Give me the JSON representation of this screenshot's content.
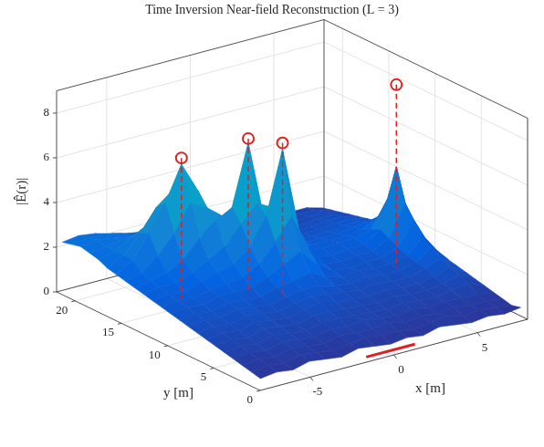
{
  "chart_data": {
    "type": "surface",
    "title": "Time Inversion Near-field Reconstruction (L = 3)",
    "x_label": "x [m]",
    "y_label": "y [m]",
    "z_label": "|Ê(r)|",
    "xlim": [
      -8,
      8
    ],
    "ylim": [
      0,
      22
    ],
    "zlim": [
      0,
      9
    ],
    "xticks": [
      -5,
      0,
      5
    ],
    "yticks": [
      0,
      5,
      10,
      15,
      20
    ],
    "zticks": [
      0,
      2,
      4,
      6,
      8
    ],
    "grid": true,
    "x": [
      -8,
      -7,
      -6,
      -5,
      -4,
      -3,
      -2,
      -1,
      0,
      1,
      2,
      3,
      4,
      5,
      6,
      7,
      8
    ],
    "y": [
      0,
      1,
      2,
      3,
      4,
      5,
      6,
      7,
      8,
      9,
      10,
      11,
      12,
      13,
      14,
      15,
      16,
      17,
      18,
      19,
      20,
      21,
      22
    ],
    "z": [
      [
        0.3,
        0.4,
        0.3,
        0.5,
        0.4,
        0.3,
        0.5,
        0.4,
        0.3,
        0.4,
        0.3,
        0.5,
        0.4,
        0.3,
        0.4,
        0.3,
        0.4
      ],
      [
        0.4,
        0.5,
        0.4,
        0.6,
        0.5,
        0.4,
        0.5,
        0.6,
        0.5,
        0.5,
        0.4,
        0.5,
        0.6,
        0.4,
        0.5,
        0.4,
        0.3
      ],
      [
        0.5,
        0.6,
        0.5,
        0.7,
        0.6,
        0.5,
        0.7,
        0.6,
        0.6,
        0.7,
        0.5,
        0.6,
        0.5,
        0.6,
        0.5,
        0.5,
        0.4
      ],
      [
        0.6,
        0.7,
        0.6,
        0.8,
        0.7,
        0.6,
        0.8,
        0.7,
        0.8,
        0.7,
        0.6,
        0.7,
        0.6,
        0.7,
        0.6,
        0.6,
        0.5
      ],
      [
        0.7,
        0.8,
        0.7,
        0.9,
        0.8,
        0.7,
        0.9,
        0.9,
        0.8,
        0.8,
        0.7,
        0.8,
        0.7,
        0.7,
        0.8,
        0.9,
        0.6
      ],
      [
        0.8,
        0.9,
        0.8,
        1.0,
        0.9,
        0.8,
        1.0,
        1.0,
        0.9,
        0.9,
        0.8,
        0.9,
        0.8,
        0.8,
        0.9,
        1.1,
        0.7
      ],
      [
        0.9,
        1.0,
        0.9,
        1.1,
        1.0,
        0.9,
        1.1,
        1.2,
        1.0,
        1.0,
        0.9,
        1.0,
        0.9,
        0.9,
        1.0,
        1.3,
        0.8
      ],
      [
        1.0,
        1.1,
        1.0,
        1.2,
        1.1,
        1.0,
        1.2,
        1.3,
        1.2,
        1.1,
        1.0,
        1.1,
        1.0,
        1.0,
        1.2,
        1.5,
        0.9
      ],
      [
        1.1,
        1.2,
        1.1,
        1.3,
        1.2,
        1.1,
        1.3,
        1.4,
        1.4,
        1.2,
        1.1,
        1.2,
        1.1,
        1.1,
        1.3,
        1.8,
        1.0
      ],
      [
        1.2,
        1.3,
        1.2,
        1.4,
        1.3,
        1.3,
        1.5,
        1.6,
        1.8,
        1.4,
        1.2,
        1.3,
        1.2,
        1.2,
        1.4,
        2.1,
        1.1
      ],
      [
        1.3,
        1.4,
        1.3,
        1.5,
        1.5,
        1.5,
        1.8,
        2.2,
        2.6,
        1.8,
        1.3,
        1.2,
        1.3,
        1.3,
        1.6,
        2.6,
        1.2
      ],
      [
        1.4,
        1.5,
        1.4,
        1.6,
        1.7,
        1.8,
        2.2,
        3.0,
        4.0,
        2.4,
        1.4,
        1.3,
        1.4,
        1.4,
        1.8,
        3.2,
        1.3
      ],
      [
        1.5,
        1.6,
        1.5,
        1.8,
        2.0,
        2.2,
        2.8,
        4.0,
        6.9,
        3.0,
        1.5,
        1.4,
        1.5,
        1.5,
        2.0,
        4.7,
        1.4
      ],
      [
        1.6,
        1.7,
        1.7,
        2.0,
        2.4,
        2.8,
        3.6,
        4.4,
        4.0,
        2.5,
        1.6,
        1.5,
        1.6,
        1.6,
        1.8,
        3.0,
        1.5
      ],
      [
        1.7,
        1.8,
        2.0,
        2.4,
        3.2,
        3.8,
        4.2,
        7.0,
        3.2,
        2.0,
        1.6,
        1.5,
        1.5,
        1.5,
        1.6,
        2.0,
        1.4
      ],
      [
        1.8,
        2.0,
        2.6,
        3.4,
        4.6,
        4.2,
        3.6,
        4.0,
        2.4,
        1.8,
        1.5,
        1.4,
        1.4,
        1.4,
        1.5,
        1.6,
        1.3
      ],
      [
        1.9,
        2.4,
        3.4,
        4.6,
        6.2,
        4.8,
        3.2,
        2.6,
        2.0,
        1.7,
        1.4,
        1.3,
        1.3,
        1.3,
        1.4,
        1.4,
        1.2
      ],
      [
        2.0,
        2.4,
        3.2,
        4.2,
        4.8,
        4.2,
        2.8,
        2.2,
        1.8,
        1.5,
        1.3,
        1.2,
        1.2,
        1.2,
        1.3,
        1.3,
        1.1
      ],
      [
        2.2,
        2.4,
        2.8,
        3.2,
        3.4,
        3.0,
        2.4,
        2.0,
        1.6,
        1.4,
        1.2,
        1.1,
        1.1,
        1.1,
        1.2,
        1.2,
        1.0
      ],
      [
        2.3,
        2.4,
        2.5,
        2.6,
        2.6,
        2.4,
        2.1,
        1.8,
        1.5,
        1.3,
        1.1,
        1.0,
        1.0,
        1.0,
        1.1,
        1.1,
        0.9
      ],
      [
        2.4,
        2.5,
        2.4,
        2.3,
        2.2,
        2.1,
        1.9,
        1.6,
        1.4,
        1.2,
        1.0,
        0.9,
        0.9,
        0.9,
        1.0,
        1.0,
        0.8
      ],
      [
        2.3,
        2.4,
        2.3,
        2.2,
        2.0,
        1.9,
        1.7,
        1.5,
        1.3,
        1.1,
        0.9,
        0.8,
        0.8,
        0.8,
        0.9,
        0.9,
        0.7
      ],
      [
        2.2,
        2.3,
        2.2,
        2.0,
        1.8,
        1.7,
        1.5,
        1.4,
        1.2,
        1.0,
        0.8,
        0.7,
        0.7,
        0.7,
        0.8,
        0.8,
        0.6
      ]
    ],
    "series": [
      {
        "type": "stem",
        "color": "#e02020",
        "marker": "circle",
        "line_style": "dashed",
        "x": [
          -4,
          -1,
          0,
          7
        ],
        "y": [
          16,
          14,
          12,
          12
        ],
        "z": [
          6.5,
          7.2,
          7.2,
          8.5
        ]
      },
      {
        "type": "line",
        "color": "#e02020",
        "line_style": "solid",
        "x": [
          -1.5,
          1.5
        ],
        "y": [
          0,
          0
        ],
        "z": [
          0,
          0
        ]
      }
    ]
  }
}
